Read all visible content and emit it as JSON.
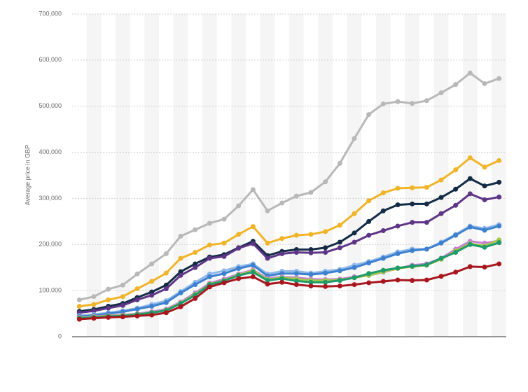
{
  "chart_data": {
    "type": "line",
    "y_label": "Average price in GBP",
    "categories": [
      null,
      null,
      null,
      null,
      null,
      null,
      null,
      null,
      null,
      null,
      null,
      null,
      null,
      null,
      null,
      null,
      null,
      null,
      null,
      null,
      null,
      null,
      null,
      null,
      null,
      null,
      null,
      null,
      null,
      null
    ],
    "ylim": [
      0,
      700000
    ],
    "yticks": [
      0,
      {
        "value": 100000,
        "label": "100,000"
      },
      {
        "value": 200000,
        "label": "200,000"
      },
      {
        "value": 300000,
        "label": "300,000"
      },
      {
        "value": 400000,
        "label": "400,000"
      },
      {
        "value": 500000,
        "label": "500,000"
      },
      {
        "value": 600000,
        "label": "600,000"
      },
      {
        "value": 700000,
        "label": "700,000"
      }
    ],
    "grid": true,
    "series": [
      {
        "color": "#b8b8b8",
        "values": [
          80000,
          87000,
          103000,
          112000,
          136000,
          158000,
          180000,
          218000,
          232000,
          246000,
          255000,
          284000,
          319000,
          273000,
          290000,
          305000,
          313000,
          336000,
          376000,
          430000,
          482000,
          505000,
          510000,
          506000,
          512000,
          529000,
          547000,
          572000,
          549000,
          560000
        ]
      },
      {
        "color": "#f0b429",
        "values": [
          66000,
          70000,
          80000,
          87000,
          104000,
          120000,
          138000,
          170000,
          183000,
          199000,
          203000,
          222000,
          239000,
          203000,
          213000,
          220000,
          222000,
          228000,
          242000,
          267000,
          295000,
          312000,
          322000,
          323000,
          324000,
          340000,
          362000,
          388000,
          368000,
          382000
        ]
      },
      {
        "color": "#142b45",
        "values": [
          55000,
          59000,
          66000,
          72000,
          85000,
          97000,
          112000,
          141000,
          158000,
          173000,
          178000,
          193000,
          207000,
          176000,
          185000,
          189000,
          189000,
          193000,
          205000,
          225000,
          250000,
          273000,
          286000,
          288000,
          288000,
          302000,
          320000,
          343000,
          327000,
          335000
        ]
      },
      {
        "color": "#5e3587",
        "values": [
          52000,
          56000,
          62000,
          68000,
          80000,
          90000,
          104000,
          133000,
          150000,
          170000,
          174000,
          192000,
          202000,
          170000,
          180000,
          183000,
          182000,
          183000,
          193000,
          205000,
          220000,
          230000,
          240000,
          248000,
          248000,
          267000,
          285000,
          310000,
          297000,
          303000
        ]
      },
      {
        "color": "#8fb8e8",
        "values": [
          46000,
          48000,
          52000,
          56000,
          62000,
          70000,
          78000,
          98000,
          118000,
          136000,
          143000,
          152000,
          158000,
          136000,
          142000,
          142000,
          138000,
          142000,
          146000,
          155000,
          163000,
          173000,
          184000,
          190000,
          190000,
          205000,
          222000,
          240000,
          235000,
          243000
        ]
      },
      {
        "color": "#3d80d0",
        "values": [
          44000,
          46000,
          50000,
          54000,
          60000,
          66000,
          74000,
          95000,
          113000,
          130000,
          137000,
          148000,
          155000,
          132000,
          137000,
          137000,
          135000,
          138000,
          143000,
          150000,
          160000,
          170000,
          180000,
          187000,
          190000,
          203000,
          220000,
          238000,
          231000,
          240000
        ]
      },
      {
        "color": "#c87fd8",
        "values": [
          42000,
          44000,
          46000,
          47000,
          50000,
          54000,
          60000,
          75000,
          95000,
          116000,
          125000,
          136000,
          145000,
          126000,
          130000,
          128000,
          125000,
          124000,
          125000,
          130000,
          133000,
          140000,
          148000,
          155000,
          158000,
          170000,
          190000,
          207000,
          203000,
          208000
        ]
      },
      {
        "color": "#a3c94a",
        "values": [
          41000,
          43000,
          45000,
          46000,
          49000,
          52000,
          58000,
          73000,
          92000,
          114000,
          122000,
          134000,
          143000,
          124000,
          128000,
          125000,
          122000,
          122000,
          123000,
          128000,
          133000,
          141000,
          148000,
          152000,
          155000,
          168000,
          186000,
          202000,
          197000,
          210000
        ]
      },
      {
        "color": "#1f9a6a",
        "values": [
          40000,
          42000,
          44000,
          45000,
          48000,
          52000,
          57000,
          72000,
          90000,
          113000,
          121000,
          133000,
          140000,
          122000,
          126000,
          121000,
          118000,
          118000,
          122000,
          128000,
          137000,
          144000,
          149000,
          153000,
          156000,
          170000,
          183000,
          200000,
          194000,
          204000
        ]
      },
      {
        "color": "#a8161e",
        "values": [
          38000,
          40000,
          42000,
          43000,
          45000,
          47000,
          52000,
          65000,
          83000,
          108000,
          117000,
          126000,
          130000,
          114000,
          118000,
          113000,
          110000,
          109000,
          110000,
          113000,
          117000,
          120000,
          123000,
          122000,
          123000,
          131000,
          140000,
          152000,
          151000,
          158000
        ]
      }
    ]
  }
}
